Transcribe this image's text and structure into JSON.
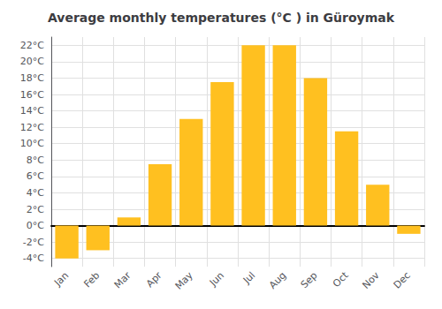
{
  "chart_data": {
    "type": "bar",
    "title": "Average monthly temperatures (°C ) in Güroymak",
    "categories": [
      "Jan",
      "Feb",
      "Mar",
      "Apr",
      "May",
      "Jun",
      "Jul",
      "Aug",
      "Sep",
      "Oct",
      "Nov",
      "Dec"
    ],
    "values": [
      -4.0,
      -3.0,
      1.0,
      7.5,
      13.0,
      17.5,
      22.0,
      22.0,
      18.0,
      11.5,
      5.0,
      -1.0
    ],
    "color": "#FFC020",
    "ylim": [
      -5,
      23
    ],
    "yticks": [
      {
        "value": -4,
        "label": "-4°C"
      },
      {
        "value": -2,
        "label": "-2°C"
      },
      {
        "value": 0,
        "label": "0°C"
      },
      {
        "value": 2,
        "label": "2°C"
      },
      {
        "value": 4,
        "label": "4°C"
      },
      {
        "value": 6,
        "label": "6°C"
      },
      {
        "value": 8,
        "label": "8°C"
      },
      {
        "value": 10,
        "label": "10°C"
      },
      {
        "value": 12,
        "label": "12°C"
      },
      {
        "value": 14,
        "label": "14°C"
      },
      {
        "value": 16,
        "label": "16°C"
      },
      {
        "value": 18,
        "label": "18°C"
      },
      {
        "value": 20,
        "label": "20°C"
      },
      {
        "value": 22,
        "label": "22°C"
      }
    ],
    "grid": true
  }
}
